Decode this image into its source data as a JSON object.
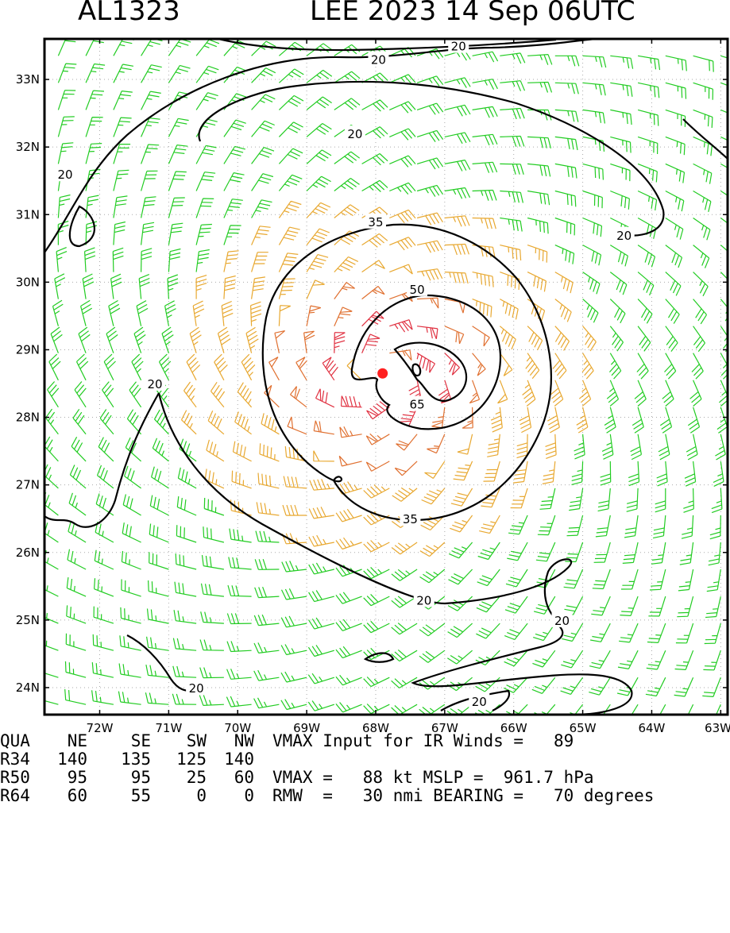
{
  "header": {
    "storm_id": "AL1323",
    "storm_title": "LEE 2023 14 Sep 06UTC"
  },
  "chart_data": {
    "type": "wind-barb-map",
    "lon_range": [
      -72.8,
      -62.9
    ],
    "lat_range": [
      23.6,
      33.6
    ],
    "x_ticks": [
      {
        "v": -72,
        "label": "72W"
      },
      {
        "v": -71,
        "label": "71W"
      },
      {
        "v": -70,
        "label": "70W"
      },
      {
        "v": -69,
        "label": "69W"
      },
      {
        "v": -68,
        "label": "68W"
      },
      {
        "v": -67,
        "label": "67W"
      },
      {
        "v": -66,
        "label": "66W"
      },
      {
        "v": -65,
        "label": "65W"
      },
      {
        "v": -64,
        "label": "64W"
      },
      {
        "v": -63,
        "label": "63W"
      }
    ],
    "y_ticks": [
      {
        "v": 24,
        "label": "24N"
      },
      {
        "v": 25,
        "label": "25N"
      },
      {
        "v": 26,
        "label": "26N"
      },
      {
        "v": 27,
        "label": "27N"
      },
      {
        "v": 28,
        "label": "28N"
      },
      {
        "v": 29,
        "label": "29N"
      },
      {
        "v": 30,
        "label": "30N"
      },
      {
        "v": 31,
        "label": "31N"
      },
      {
        "v": 32,
        "label": "32N"
      },
      {
        "v": 33,
        "label": "33N"
      }
    ],
    "grid": "dotted",
    "center": {
      "lon": -67.9,
      "lat": 28.65
    },
    "barb_colors": {
      "lt20": "#000000",
      "20-34": "#22cc22",
      "35-49": "#e8a830",
      "50-64": "#e07030",
      "ge65": "#e03040"
    },
    "center_color": "#ff2020",
    "contour_labels": [
      {
        "text": "20",
        "lon": -67.96,
        "lat": 33.3
      },
      {
        "text": "20",
        "lon": -66.8,
        "lat": 33.5
      },
      {
        "text": "20",
        "lon": -68.3,
        "lat": 32.2
      },
      {
        "text": "20",
        "lon": -72.5,
        "lat": 31.6
      },
      {
        "text": "20",
        "lon": -64.4,
        "lat": 30.7
      },
      {
        "text": "35",
        "lon": -68.0,
        "lat": 30.9
      },
      {
        "text": "50",
        "lon": -67.4,
        "lat": 29.9
      },
      {
        "text": "65",
        "lon": -67.4,
        "lat": 28.2
      },
      {
        "text": "20",
        "lon": -71.2,
        "lat": 28.5
      },
      {
        "text": "35",
        "lon": -67.5,
        "lat": 26.5
      },
      {
        "text": "20",
        "lon": -67.3,
        "lat": 25.3
      },
      {
        "text": "20",
        "lon": -65.3,
        "lat": 25.0
      },
      {
        "text": "20",
        "lon": -70.6,
        "lat": 24.0
      },
      {
        "text": "20",
        "lon": -66.5,
        "lat": 23.8
      }
    ]
  },
  "table": {
    "col_headers": [
      "QUA",
      "NE",
      "SE",
      "SW",
      "NW"
    ],
    "rows": [
      {
        "label": "R34",
        "values": [
          "140",
          "135",
          "125",
          "140"
        ]
      },
      {
        "label": "R50",
        "values": [
          "95",
          "95",
          "25",
          "60"
        ]
      },
      {
        "label": "R64",
        "values": [
          "60",
          "55",
          "0",
          "0"
        ]
      }
    ],
    "notes": [
      "VMAX Input for IR Winds =   89",
      "",
      "VMAX =   88 kt MSLP =  961.7 hPa",
      "RMW  =   30 nmi BEARING =   70 degrees"
    ]
  }
}
